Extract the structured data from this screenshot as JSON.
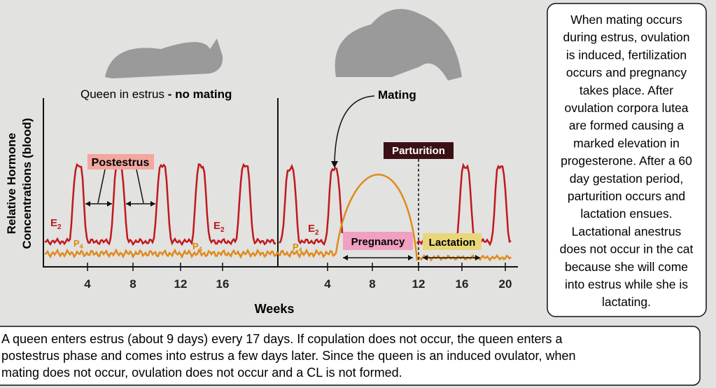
{
  "y_axis_label": [
    "Relative Hormone",
    "Concentrations (blood)"
  ],
  "left_panel": {
    "title": "Queen in estrus",
    "title_bold": "- no mating",
    "phase_label": "Postestrus",
    "e2": {
      "symbol": "E",
      "subscript": "2"
    },
    "p4": {
      "symbol": "P",
      "subscript": "4"
    },
    "ticks": [
      "4",
      "8",
      "12",
      "16"
    ]
  },
  "right_panel": {
    "mating": "Mating",
    "parturition": "Parturition",
    "pregnancy": "Pregnancy",
    "lactation": "Lactation",
    "e2": {
      "symbol": "E",
      "subscript": "2"
    },
    "p4": {
      "symbol": "P",
      "subscript": "4"
    },
    "ticks": [
      "4",
      "8",
      "12",
      "16",
      "20"
    ]
  },
  "x_axis_label": "Weeks",
  "side_note": [
    "When mating occurs",
    "during estrus, ovulation",
    "is induced, fertilization",
    "occurs and pregnancy",
    "takes place.  After",
    "ovulation corpora lutea",
    "are formed causing a",
    "marked elevation in",
    "progesterone. After a 60",
    "day gestation period,",
    "parturition occurs and",
    "lactation ensues.",
    "Lactational anestrus",
    "does not occur in the cat",
    "because she will come",
    "into estrus while she is",
    "lactating."
  ],
  "caption": [
    "A queen enters estrus (about 9 days) every 17 days.  If copulation does not occur, the queen enters a",
    "postestrus phase and comes into estrus a few days later.  Since the queen is an induced ovulator, when",
    "mating does not occur, ovulation does not occur and a CL is not formed."
  ]
}
